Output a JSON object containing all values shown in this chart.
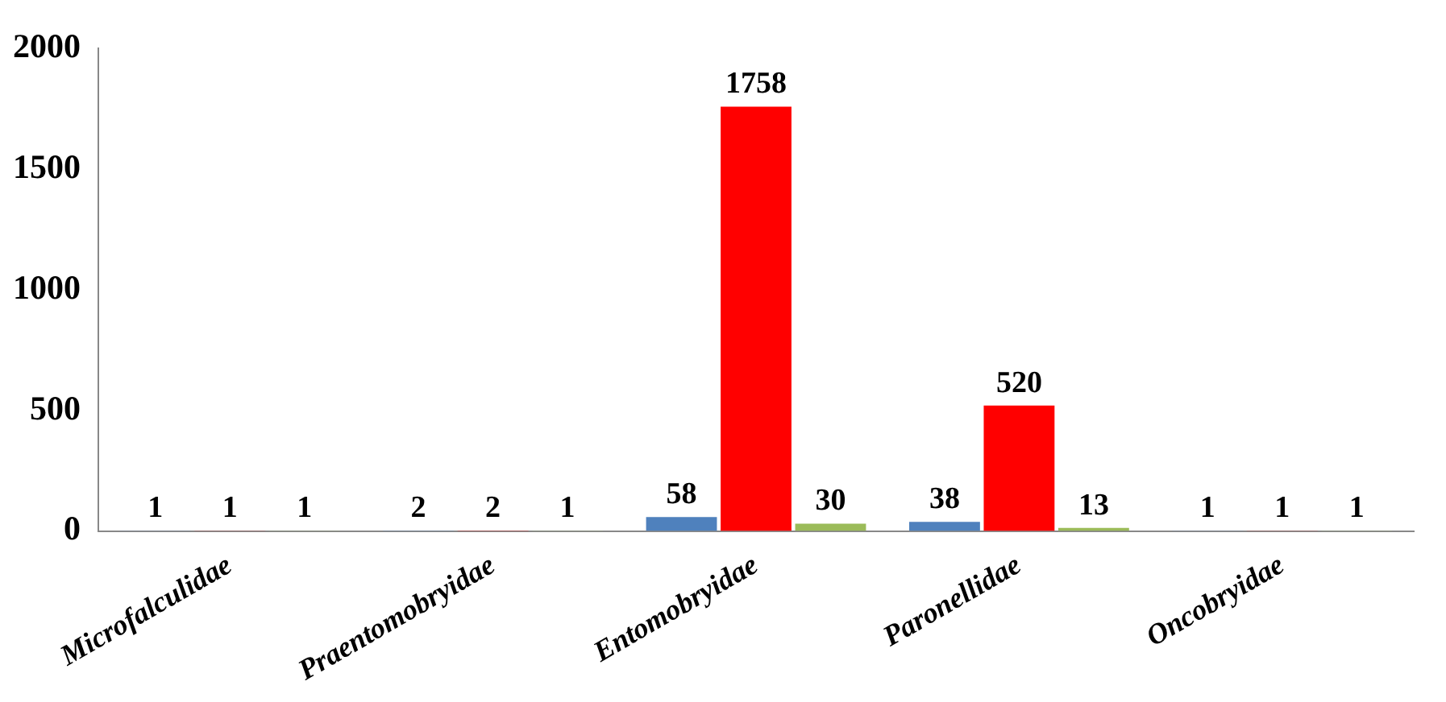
{
  "chart_data": {
    "type": "bar",
    "categories": [
      "Microfalculidae",
      "Praentomobryidae",
      "Entomobryidae",
      "Paronellidae",
      "Oncobryidae"
    ],
    "series": [
      {
        "color": "#4f81bd",
        "values": [
          1,
          2,
          58,
          38,
          1
        ]
      },
      {
        "color": "#ff0000",
        "values": [
          1,
          2,
          1758,
          520,
          1
        ]
      },
      {
        "color": "#9bbb59",
        "values": [
          1,
          1,
          30,
          13,
          1
        ]
      }
    ],
    "ylim": [
      0,
      2000
    ],
    "yticks": [
      0,
      500,
      1000,
      1500,
      2000
    ],
    "grid": false,
    "legend": false,
    "data_labels": true
  }
}
